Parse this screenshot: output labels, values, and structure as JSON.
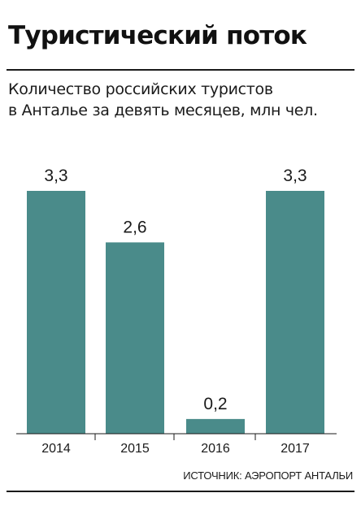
{
  "header": {
    "title": "Туристический поток",
    "subtitle_line1": "Количество российских туристов",
    "subtitle_line2": "в Анталье за девять месяцев, млн чел."
  },
  "footer": {
    "source": "ИСТОЧНИК: АЭРОПОРТ АНТАЛЬИ"
  },
  "colors": {
    "bar": "#4a8b8a"
  },
  "chart_data": {
    "type": "bar",
    "categories": [
      "2014",
      "2015",
      "2016",
      "2017"
    ],
    "values": [
      3.3,
      2.6,
      0.2,
      3.3
    ],
    "value_labels": [
      "3,3",
      "2,6",
      "0,2",
      "3,3"
    ],
    "title": "Туристический поток",
    "subtitle": "Количество российских туристов в Анталье за девять месяцев, млн чел.",
    "xlabel": "",
    "ylabel": "",
    "ylim": [
      0,
      3.3
    ],
    "grid": false,
    "legend": "none"
  }
}
